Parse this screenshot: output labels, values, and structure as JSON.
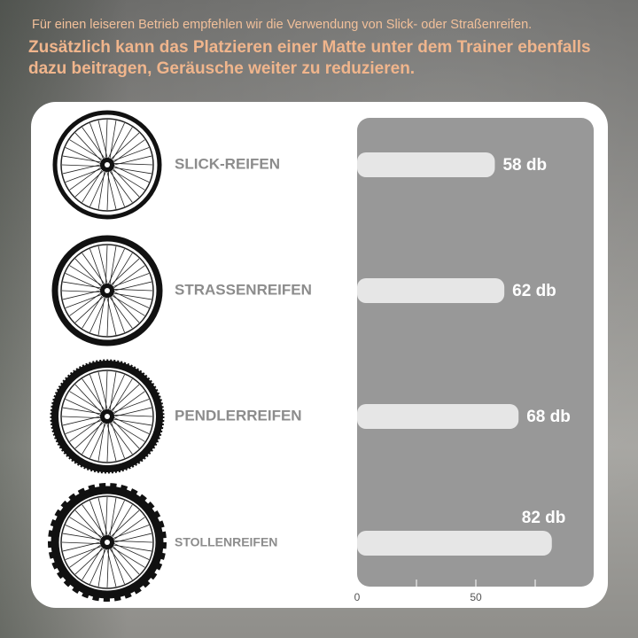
{
  "chart_data": {
    "type": "bar",
    "orientation": "horizontal",
    "subtitle": "Für einen leiseren Betrieb empfehlen wir die Verwendung von Slick- oder Straßenreifen.",
    "title": "Zusätzlich kann das Platzieren einer Matte unter dem Trainer ebenfalls dazu beitragen, Geräusche weiter zu reduzieren.",
    "categories": [
      "SLICK-REIFEN",
      "STRASSENREIFEN",
      "PENDLERREIFEN",
      "STOLLENREIFEN"
    ],
    "values": [
      58,
      62,
      68,
      82
    ],
    "value_labels": [
      "58 db",
      "62 db",
      "68 db",
      "82 db"
    ],
    "color": "#e6e6e6",
    "xlim": [
      0,
      100
    ],
    "xticks": [
      0,
      50
    ],
    "xminorticks": [
      25,
      75
    ]
  }
}
